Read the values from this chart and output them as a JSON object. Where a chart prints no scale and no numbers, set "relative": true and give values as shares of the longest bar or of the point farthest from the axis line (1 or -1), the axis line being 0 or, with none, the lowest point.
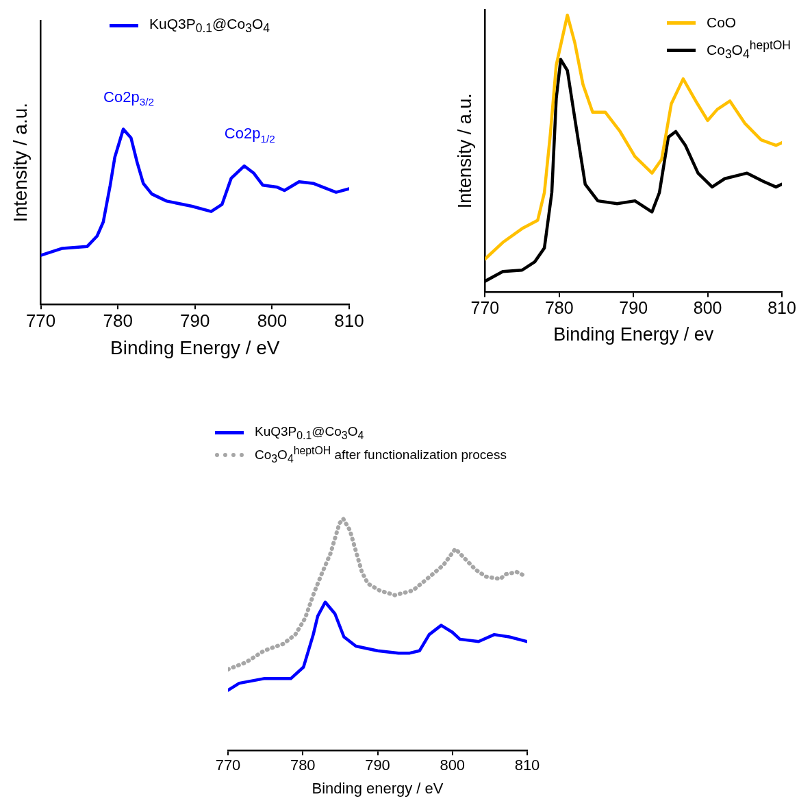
{
  "chart_data": [
    {
      "type": "line",
      "relative": true,
      "xlabel": "Binding Energy / eV",
      "ylabel": "Intensity / a.u.",
      "xlim": [
        770,
        810
      ],
      "xticks": [
        770,
        780,
        790,
        800,
        810
      ],
      "tick_labels": "x",
      "legend": "top",
      "annotations": [
        {
          "text": "Co2p$_{3/2}$",
          "x": 780.7,
          "y": 1.0
        },
        {
          "text": "Co2p$_{1/2}$",
          "x": 796.4,
          "y": 0.79
        }
      ],
      "series": [
        {
          "name": "KuQ3P$_{0.1}$@Co$_{3}$O$_{4}$",
          "color": "#0000ff",
          "x": [
            770,
            772.8,
            776,
            777.3,
            778.1,
            779,
            779.6,
            780.7,
            781.7,
            782.5,
            783.3,
            784.4,
            786.3,
            789.6,
            792.1,
            793.5,
            794.7,
            796.4,
            797.6,
            798.8,
            800.6,
            801.6,
            803.5,
            805.4,
            808.3,
            810
          ],
          "values": [
            0.28,
            0.32,
            0.33,
            0.39,
            0.47,
            0.68,
            0.84,
            1.0,
            0.95,
            0.81,
            0.69,
            0.63,
            0.59,
            0.56,
            0.53,
            0.57,
            0.72,
            0.79,
            0.75,
            0.68,
            0.67,
            0.65,
            0.7,
            0.69,
            0.64,
            0.66
          ]
        }
      ]
    },
    {
      "type": "line",
      "relative": true,
      "xlabel": "Binding Energy / ev",
      "ylabel": "Intensity / a.u.",
      "xlim": [
        770,
        810
      ],
      "xticks": [
        770,
        780,
        790,
        800,
        810
      ],
      "tick_labels": "x",
      "legend": "top right",
      "series": [
        {
          "name": "CoO",
          "color": "#ffc000",
          "x": [
            770,
            772.4,
            775,
            777.1,
            778,
            778.8,
            779.6,
            781.1,
            782.1,
            783.2,
            784.5,
            786.2,
            788.2,
            790.2,
            792.5,
            793.8,
            795.1,
            796.7,
            798.4,
            800,
            801.3,
            803,
            805,
            807.2,
            809.2,
            810
          ],
          "values": [
            0.12,
            0.18,
            0.23,
            0.26,
            0.36,
            0.57,
            0.82,
            1.0,
            0.9,
            0.75,
            0.65,
            0.65,
            0.58,
            0.49,
            0.43,
            0.48,
            0.68,
            0.77,
            0.69,
            0.62,
            0.66,
            0.69,
            0.61,
            0.55,
            0.53,
            0.54
          ]
        },
        {
          "name": "Co$_{3}$O$_{4}$$^{heptOH}$",
          "color": "#000000",
          "x": [
            770,
            772.4,
            775,
            776.7,
            778,
            779,
            779.6,
            780.2,
            781.1,
            782.2,
            783.5,
            785.2,
            787.8,
            790.2,
            792.5,
            793.5,
            794.7,
            795.7,
            797,
            798.7,
            800.6,
            802.3,
            805.3,
            807.5,
            809.2,
            810
          ],
          "values": [
            0.04,
            0.075,
            0.08,
            0.11,
            0.16,
            0.36,
            0.7,
            0.84,
            0.8,
            0.61,
            0.39,
            0.33,
            0.32,
            0.33,
            0.29,
            0.36,
            0.56,
            0.58,
            0.53,
            0.43,
            0.38,
            0.41,
            0.43,
            0.4,
            0.38,
            0.39
          ]
        }
      ]
    },
    {
      "type": "line",
      "relative": true,
      "xlabel": "Binding energy / eV",
      "xlim": [
        770,
        810
      ],
      "xticks": [
        770,
        780,
        790,
        800,
        810
      ],
      "tick_labels": "x",
      "legend": "top",
      "series": [
        {
          "name": "KuQ3P$_{0.1}$@Co$_{3}$O$_{4}$",
          "color": "#0000ff",
          "x": [
            770,
            771.5,
            774.8,
            778.4,
            780.1,
            781.4,
            782,
            783,
            784.3,
            785.5,
            787.1,
            790,
            792.8,
            794.3,
            795.6,
            796.9,
            798.5,
            800,
            801,
            803.5,
            805.6,
            807.6,
            810
          ],
          "values": [
            0.26,
            0.29,
            0.31,
            0.31,
            0.36,
            0.5,
            0.58,
            0.64,
            0.59,
            0.49,
            0.45,
            0.43,
            0.42,
            0.42,
            0.43,
            0.5,
            0.54,
            0.51,
            0.48,
            0.47,
            0.5,
            0.49,
            0.47
          ]
        },
        {
          "name": "Co$_{3}$O$_{4}$$^{heptOH}$ after functionalization process",
          "color": "#a6a6a6",
          "line_style": "dotted",
          "x": [
            770,
            772.4,
            774.8,
            777.4,
            779,
            780.3,
            781.5,
            782.5,
            783.7,
            784.9,
            785.4,
            786.3,
            787.1,
            787.9,
            788.7,
            790.3,
            792.3,
            794.7,
            796.6,
            798.8,
            800.4,
            801.6,
            803.1,
            804.5,
            806.4,
            807.1,
            808.6,
            809.9
          ],
          "values": [
            0.35,
            0.38,
            0.43,
            0.46,
            0.5,
            0.57,
            0.68,
            0.76,
            0.85,
            0.98,
            1.0,
            0.95,
            0.86,
            0.77,
            0.72,
            0.69,
            0.67,
            0.69,
            0.74,
            0.8,
            0.87,
            0.83,
            0.78,
            0.75,
            0.74,
            0.76,
            0.77,
            0.75
          ]
        }
      ]
    }
  ]
}
